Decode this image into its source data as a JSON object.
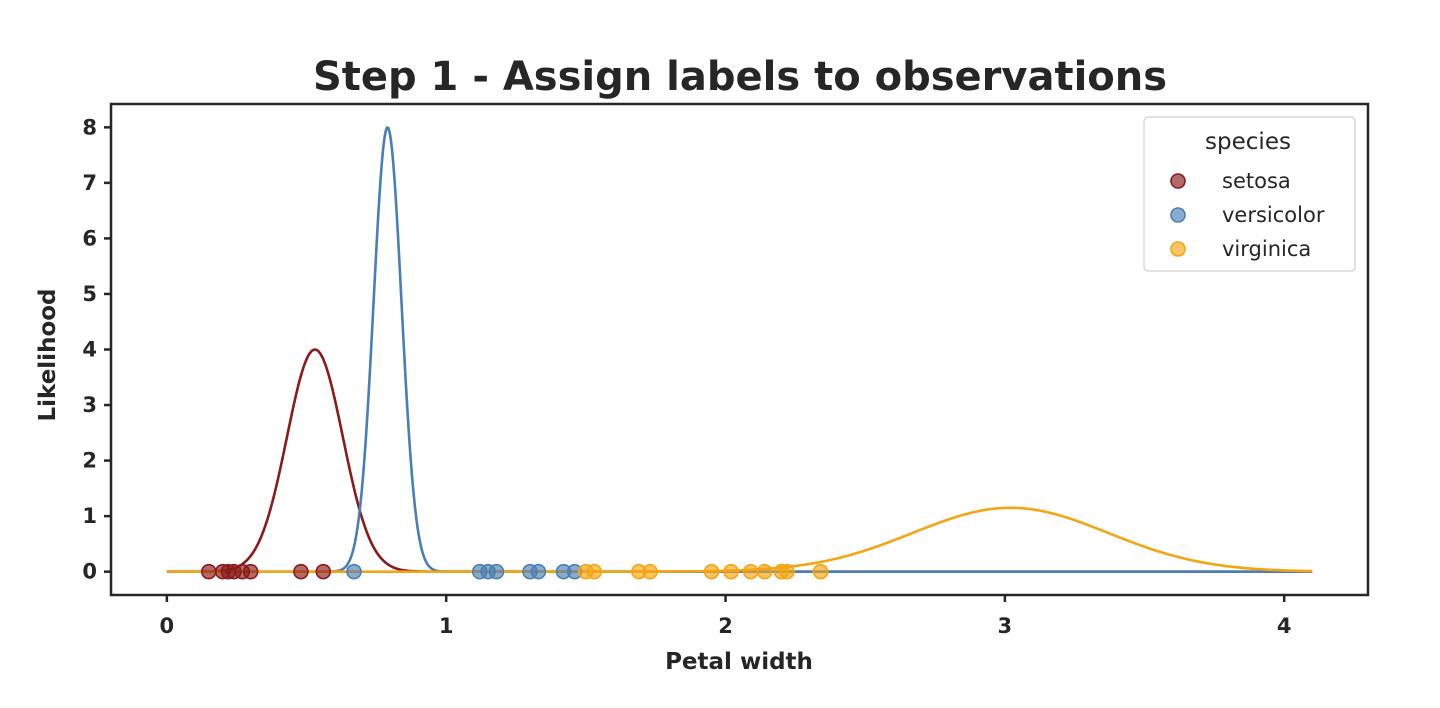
{
  "chart_data": {
    "type": "line",
    "title": "Step 1 - Assign labels to observations",
    "xlabel": "Petal width",
    "ylabel": "Likelihood",
    "xlim": [
      -0.2,
      4.3
    ],
    "ylim": [
      -0.42,
      8.42
    ],
    "xticks": [
      0,
      1,
      2,
      3,
      4
    ],
    "xtick_labels": [
      "0",
      "1",
      "2",
      "3",
      "4"
    ],
    "yticks": [
      0,
      1,
      2,
      3,
      4,
      5,
      6,
      7,
      8
    ],
    "ytick_labels": [
      "0",
      "1",
      "2",
      "3",
      "4",
      "5",
      "6",
      "7",
      "8"
    ],
    "grid": false,
    "legend": {
      "title": "species",
      "placement": "top-right"
    },
    "curve_x_range": [
      0,
      4.1
    ],
    "series": [
      {
        "name": "setosa",
        "color": "#8b1a1a",
        "curve": {
          "distribution": "normal",
          "mean": 0.53,
          "std": 0.1,
          "peak": 4.0
        },
        "observations": [
          0.15,
          0.2,
          0.22,
          0.24,
          0.27,
          0.3,
          0.48,
          0.56
        ]
      },
      {
        "name": "versicolor",
        "color": "#4a7fb5",
        "curve": {
          "distribution": "normal",
          "mean": 0.79,
          "std": 0.05,
          "peak": 8.0
        },
        "observations": [
          0.67,
          1.12,
          1.15,
          1.18,
          1.3,
          1.33,
          1.42,
          1.46
        ]
      },
      {
        "name": "virginica",
        "color": "#f5a511",
        "curve": {
          "distribution": "normal",
          "mean": 3.02,
          "std": 0.35,
          "peak": 1.15
        },
        "observations": [
          1.5,
          1.53,
          1.69,
          1.73,
          1.95,
          2.02,
          2.09,
          2.14,
          2.2,
          2.22,
          2.34
        ]
      }
    ]
  }
}
